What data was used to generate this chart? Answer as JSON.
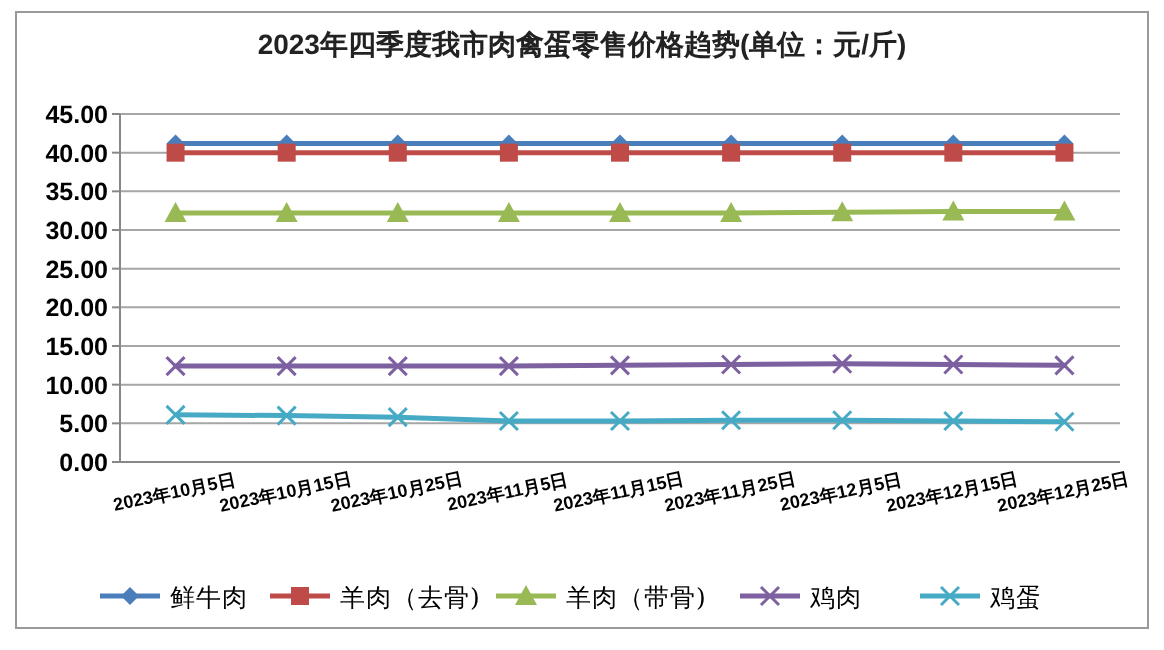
{
  "chart_data": {
    "type": "line",
    "title": "2023年四季度我市肉禽蛋零售价格趋势(单位：元/斤)",
    "categories": [
      "2023年10月5日",
      "2023年10月15日",
      "2023年10月25日",
      "2023年11月5日",
      "2023年11月15日",
      "2023年11月25日",
      "2023年12月5日",
      "2023年12月15日",
      "2023年12月25日"
    ],
    "series": [
      {
        "name": "鲜牛肉",
        "color": "#4a7ebb",
        "marker": "diamond",
        "values": [
          41.2,
          41.2,
          41.2,
          41.2,
          41.2,
          41.2,
          41.2,
          41.2,
          41.2
        ]
      },
      {
        "name": "羊肉（去骨)",
        "color": "#be4b48",
        "marker": "square",
        "values": [
          40.0,
          40.0,
          40.0,
          40.0,
          40.0,
          40.0,
          40.0,
          40.0,
          40.0
        ]
      },
      {
        "name": "羊肉（带骨)",
        "color": "#98b954",
        "marker": "triangle",
        "values": [
          32.2,
          32.2,
          32.2,
          32.2,
          32.2,
          32.2,
          32.3,
          32.4,
          32.4
        ]
      },
      {
        "name": "鸡肉",
        "color": "#7d60a0",
        "marker": "cross",
        "values": [
          12.4,
          12.4,
          12.4,
          12.4,
          12.5,
          12.6,
          12.7,
          12.6,
          12.5
        ]
      },
      {
        "name": "鸡蛋",
        "color": "#46aac5",
        "marker": "cross",
        "values": [
          6.1,
          6.0,
          5.8,
          5.3,
          5.3,
          5.4,
          5.4,
          5.3,
          5.2
        ]
      }
    ],
    "ylim": [
      0,
      45
    ],
    "yticks": [
      {
        "value": 0,
        "label": "0.00"
      },
      {
        "value": 5,
        "label": "5.00"
      },
      {
        "value": 10,
        "label": "10.00"
      },
      {
        "value": 15,
        "label": "15.00"
      },
      {
        "value": 20,
        "label": "20.00"
      },
      {
        "value": 25,
        "label": "25.00"
      },
      {
        "value": 30,
        "label": "30.00"
      },
      {
        "value": 35,
        "label": "35.00"
      },
      {
        "value": 40,
        "label": "40.00"
      },
      {
        "value": 45,
        "label": "45.00"
      }
    ],
    "grid": "y",
    "legend": "bottom"
  }
}
